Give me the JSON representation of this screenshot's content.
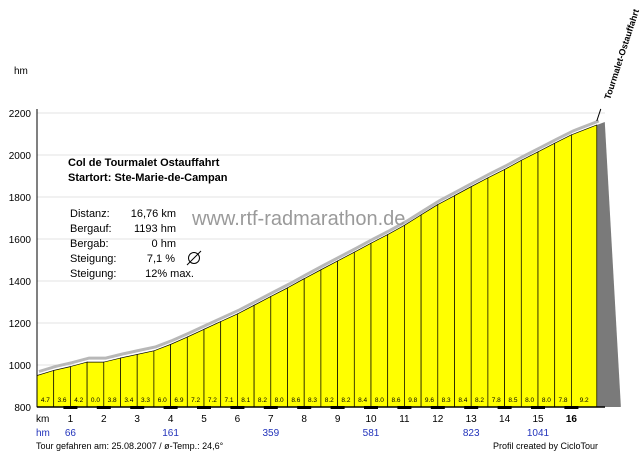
{
  "chart_data": {
    "type": "area",
    "title": "Col de Tourmalet Ostauffahrt",
    "subtitle": "Startort: Ste-Marie-de-Campan",
    "ylabel": "hm",
    "xlabel": "km",
    "ylim": [
      800,
      2200
    ],
    "yticks": [
      "800",
      "1000",
      "1200",
      "1400",
      "1600",
      "1800",
      "2000",
      "2200"
    ],
    "xticks": [
      "1",
      "2",
      "3",
      "4",
      "5",
      "6",
      "7",
      "8",
      "9",
      "10",
      "11",
      "12",
      "13",
      "14",
      "15",
      "16"
    ],
    "total_km": 16.76,
    "start_elevation_m": 950,
    "end_elevation_m": 2143,
    "segment_km": 0.5,
    "segment_gradients": [
      "4.7",
      "3.6",
      "4.2",
      "0.0",
      "3.8",
      "3.4",
      "3.3",
      "6.0",
      "6.9",
      "7.2",
      "7.2",
      "7.1",
      "8.1",
      "8.2",
      "8.0",
      "8.6",
      "8.3",
      "8.2",
      "8.2",
      "8.4",
      "8.0",
      "8.6",
      "9.8",
      "9.6",
      "8.3",
      "8.4",
      "8.2",
      "7.8",
      "8.5",
      "8.0",
      "8.0",
      "7.8",
      "9.2"
    ],
    "segment_gradient_values": [
      4.7,
      3.6,
      4.2,
      0.0,
      3.8,
      3.4,
      3.3,
      6.0,
      6.9,
      7.2,
      7.2,
      7.1,
      8.1,
      8.2,
      8.0,
      8.6,
      8.3,
      8.2,
      8.2,
      8.4,
      8.0,
      8.6,
      9.8,
      9.6,
      8.3,
      8.4,
      8.2,
      7.8,
      8.5,
      8.0,
      8.0,
      7.8,
      9.2
    ],
    "hm_row_label": "hm",
    "hm_markers": [
      {
        "km": 1,
        "value": "66"
      },
      {
        "km": 4,
        "value": "161"
      },
      {
        "km": 7,
        "value": "359"
      },
      {
        "km": 10,
        "value": "581"
      },
      {
        "km": 13,
        "value": "823"
      },
      {
        "km": 15,
        "value": "1041"
      }
    ],
    "summit_label": "Tourmalet-Ostauffahrt",
    "info": {
      "rows": [
        {
          "label": "Distanz:",
          "value": "16,76 km"
        },
        {
          "label": "Bergauf:",
          "value": "1193 hm"
        },
        {
          "label": "Bergab:",
          "value": "0 hm"
        },
        {
          "label": "Steigung:",
          "value": "7,1 %"
        },
        {
          "label": "Steigung:",
          "value": "12% max."
        }
      ]
    },
    "watermark": "www.rtf-radmarathon.de",
    "footer_left": "Tour gefahren am: 25.08.2007  /  ø-Temp.: 24,6°",
    "footer_right": "Profil created by CicloTour",
    "colors": {
      "fill": "#ffff00",
      "stroke": "#000000",
      "shadow": "#7a7a7a",
      "hm_text": "#2233bb"
    }
  }
}
